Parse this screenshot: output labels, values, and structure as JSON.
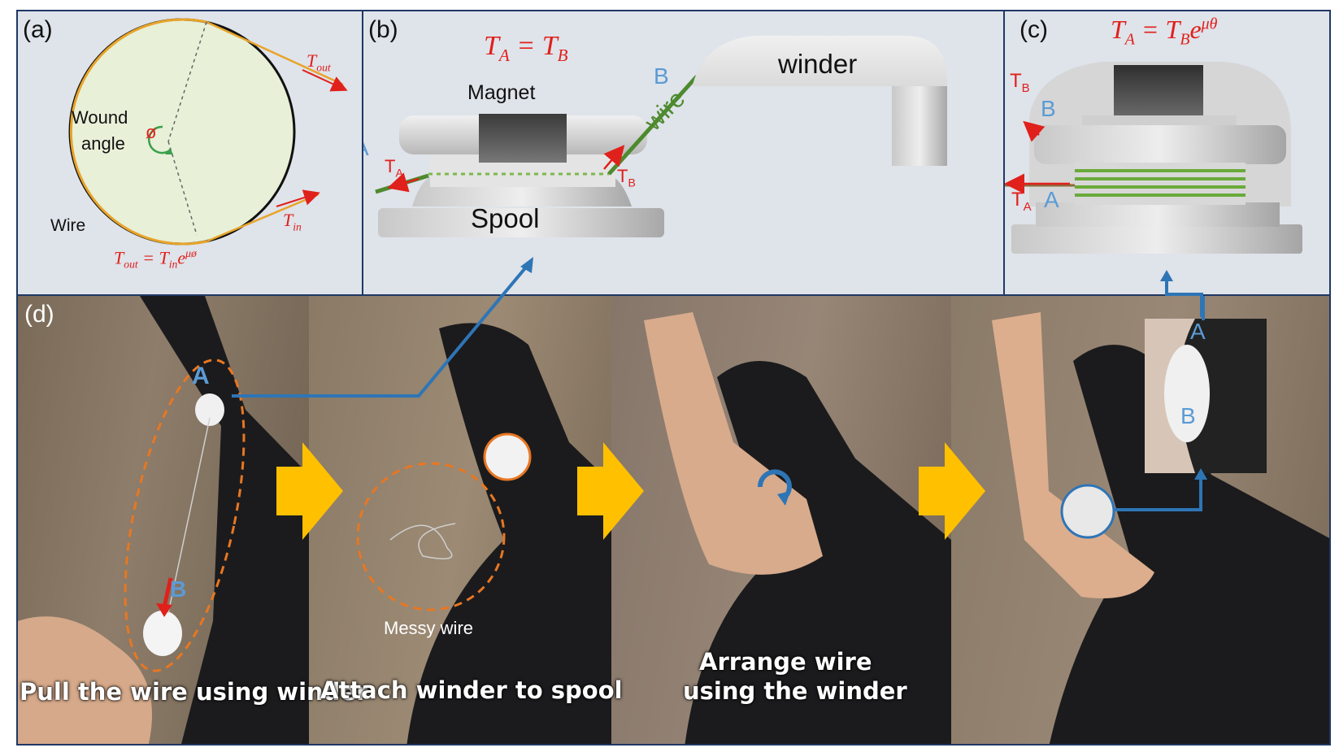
{
  "panel_a": {
    "label": "(a)",
    "wound_angle_line1": "Wound",
    "wound_angle_line2": "angle",
    "angle_symbol": "ø",
    "wire_label": "Wire",
    "t_out": "T",
    "t_out_sub": "out",
    "t_in": "T",
    "t_in_sub": "in",
    "equation_lhs": "T",
    "equation_lhs_sub": "out",
    "equation_eq": " = T",
    "equation_rhs_sub": "in",
    "equation_e": "e",
    "equation_exp": "μø"
  },
  "panel_b": {
    "label": "(b)",
    "equation_t1": "T",
    "equation_sub1": "A",
    "equation_eq": " = T",
    "equation_sub2": "B",
    "magnet_label": "Magnet",
    "spool_label": "Spool",
    "winder_label": "winder",
    "wire_label": "wire",
    "point_a": "A",
    "point_b": "B",
    "ta": "T",
    "ta_sub": "A",
    "tb": "T",
    "tb_sub": "B"
  },
  "panel_c": {
    "label": "(c)",
    "equation_t1": "T",
    "equation_sub1": "A",
    "equation_eq": " = T",
    "equation_sub2": "B",
    "equation_e": "e",
    "equation_exp": "μθ",
    "tb": "T",
    "tb_sub": "B",
    "ta": "T",
    "ta_sub": "A",
    "point_a": "A",
    "point_b": "B"
  },
  "panel_d": {
    "label": "(d)",
    "point_a": "A",
    "point_b": "B",
    "messy_wire": "Messy wire",
    "caption1": "Pull the wire using winder",
    "caption2": "Attach winder to spool",
    "caption3_line1": "Arrange wire",
    "caption3_line2": "using the winder",
    "inset_a": "A",
    "inset_b": "B"
  },
  "colors": {
    "border": "#1f3864",
    "panel_bg": "#dfe3ea",
    "red": "#e0201b",
    "blue_label": "#5b9bd5",
    "wire_green": "#4e8a2e",
    "arrow_blue": "#2e75b6",
    "orange": "#e87722",
    "yellow_arrow": "#ffc000",
    "circle_fill": "#e8f0d8"
  }
}
